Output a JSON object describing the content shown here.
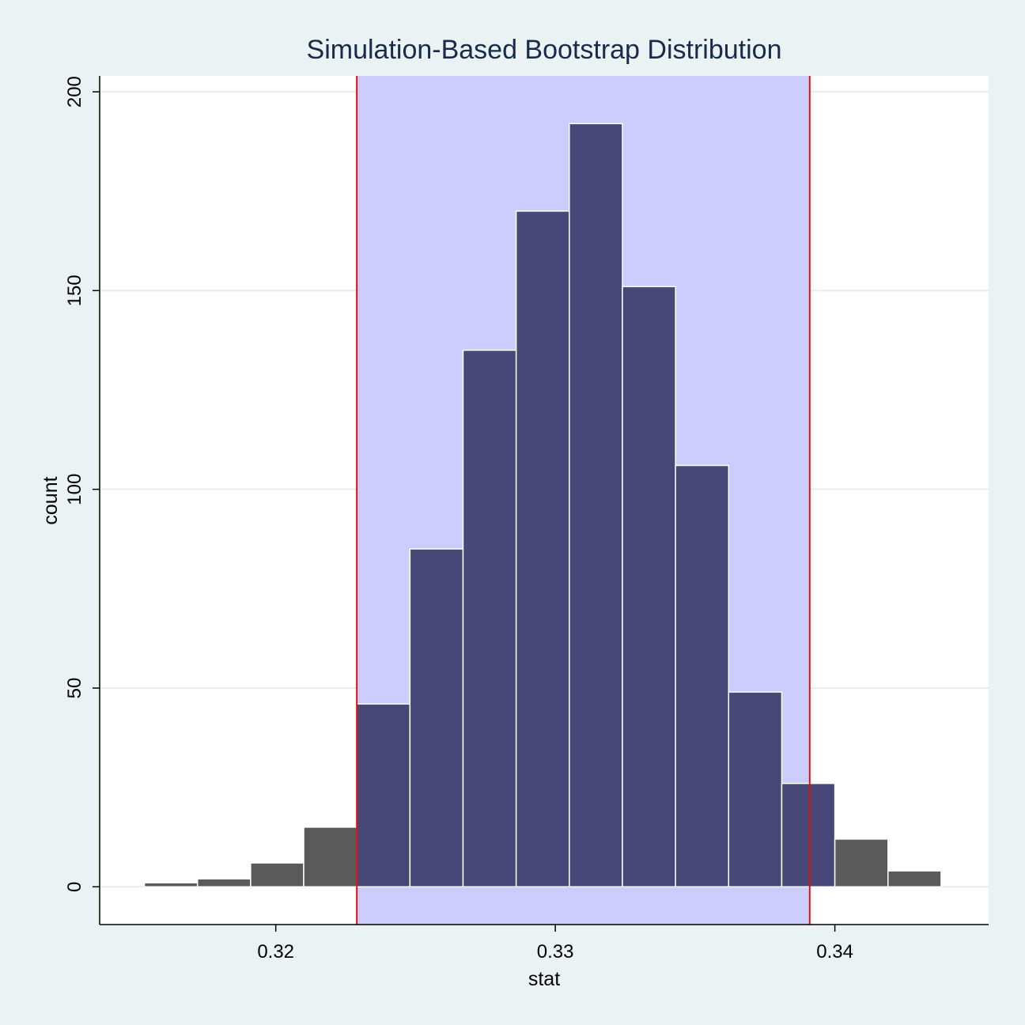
{
  "chart_data": {
    "type": "bar",
    "title": "Simulation-Based Bootstrap Distribution",
    "xlabel": "stat",
    "ylabel": "count",
    "xlim": [
      0.3137,
      0.3455
    ],
    "ylim": [
      -9.5,
      204
    ],
    "xticks": [
      0.32,
      0.33,
      0.34
    ],
    "xtick_labels": [
      "0.32",
      "0.33",
      "0.34"
    ],
    "yticks": [
      0,
      50,
      100,
      150,
      200
    ],
    "ytick_labels": [
      "0",
      "50",
      "100",
      "150",
      "200"
    ],
    "bin_width": 0.0019,
    "bin_centers": [
      0.31625,
      0.31815,
      0.32005,
      0.32195,
      0.32385,
      0.32575,
      0.32765,
      0.32955,
      0.33145,
      0.33335,
      0.33525,
      0.33715,
      0.33905,
      0.34095,
      0.34285
    ],
    "counts": [
      1,
      2,
      6,
      15,
      46,
      85,
      135,
      170,
      192,
      151,
      106,
      49,
      26,
      12,
      4
    ],
    "confidence_interval": [
      0.3229,
      0.3391
    ],
    "colors": {
      "inside_bar": "#474878",
      "outside_bar": "#5a5a5a",
      "shade": "#ccccfd",
      "endpoint_line": "#dd1111",
      "plot_bg": "#ffffff",
      "grid": "#e7eef0"
    }
  }
}
